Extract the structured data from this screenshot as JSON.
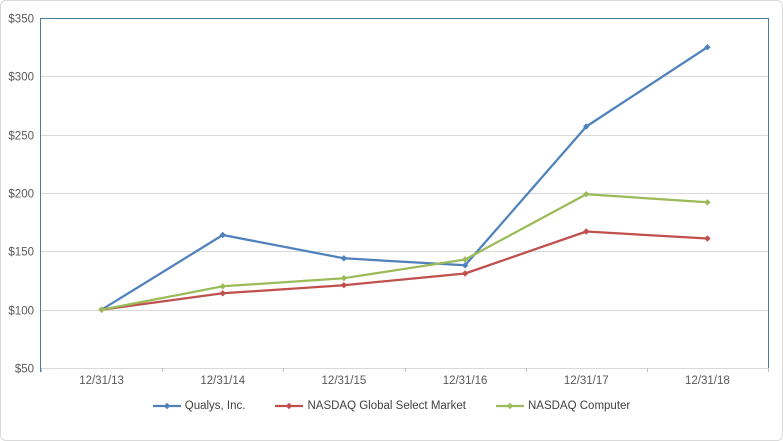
{
  "chart_data": {
    "type": "line",
    "title": "",
    "xlabel": "",
    "ylabel": "",
    "categories": [
      "12/31/13",
      "12/31/14",
      "12/31/15",
      "12/31/16",
      "12/31/17",
      "12/31/18"
    ],
    "series": [
      {
        "name": "Qualys, Inc.",
        "color": "#4F81BD",
        "marker": "diamond",
        "values": [
          100,
          164,
          144,
          138,
          257,
          325
        ]
      },
      {
        "name": "NASDAQ Global Select Market",
        "color": "#C0504D",
        "marker": "diamond",
        "values": [
          100,
          114,
          121,
          131,
          167,
          161
        ]
      },
      {
        "name": "NASDAQ Computer",
        "color": "#9BBB59",
        "marker": "diamond",
        "values": [
          100,
          120,
          127,
          143,
          199,
          192
        ]
      }
    ],
    "y_axis": {
      "min": 50,
      "max": 350,
      "step": 50,
      "tick_labels": [
        "$50",
        "$100",
        "$150",
        "$200",
        "$250",
        "$300",
        "$350"
      ]
    },
    "x_axis": {
      "tick_labels": [
        "12/31/13",
        "12/31/14",
        "12/31/15",
        "12/31/16",
        "12/31/17",
        "12/31/18"
      ]
    },
    "grid": true,
    "legend_position": "bottom",
    "colors": {
      "gridline": "#D9D9D9",
      "plot_border": "#4E7D9B",
      "axis_tick": "#BFBFBF",
      "axis_text": "#595959",
      "legend_text": "#404040",
      "background": "#FFFFFF",
      "chart_border": "#D9D9D9"
    }
  }
}
